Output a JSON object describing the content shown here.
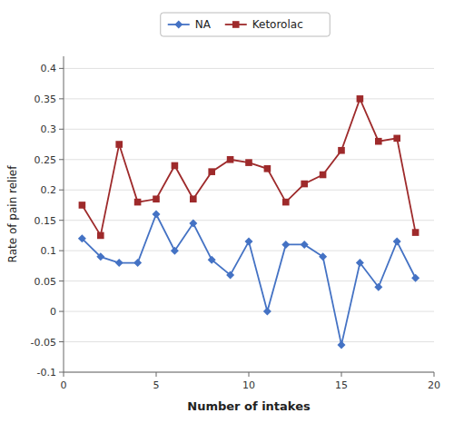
{
  "chart_data": {
    "type": "line",
    "x": [
      1,
      2,
      3,
      4,
      5,
      6,
      7,
      8,
      9,
      10,
      11,
      12,
      13,
      14,
      15,
      16,
      17,
      18,
      19
    ],
    "series": [
      {
        "name": "NA",
        "color": "#4472C4",
        "marker": "diamond",
        "line_style": "solid",
        "values": [
          0.12,
          0.09,
          0.08,
          0.08,
          0.16,
          0.1,
          0.145,
          0.085,
          0.06,
          0.115,
          0.0,
          0.11,
          0.11,
          0.09,
          -0.055,
          0.08,
          0.04,
          0.115,
          0.055
        ]
      },
      {
        "name": "Ketorolac",
        "color": "#9E2A2B",
        "marker": "square",
        "line_style": "solid",
        "values": [
          0.175,
          0.125,
          0.275,
          0.18,
          0.185,
          0.24,
          0.185,
          0.23,
          0.25,
          0.245,
          0.235,
          0.18,
          0.21,
          0.225,
          0.265,
          0.35,
          0.28,
          0.285,
          0.13
        ]
      }
    ],
    "xlabel": "Number of intakes",
    "ylabel": "Rate of pain relief",
    "xlim": [
      0,
      20
    ],
    "ylim": [
      -0.1,
      0.42
    ],
    "xticks": [
      0,
      5,
      10,
      15,
      20
    ],
    "yticks": [
      -0.1,
      -0.05,
      0,
      0.05,
      0.1,
      0.15,
      0.2,
      0.25,
      0.3,
      0.35,
      0.4
    ],
    "grid": true,
    "legend": "top"
  }
}
